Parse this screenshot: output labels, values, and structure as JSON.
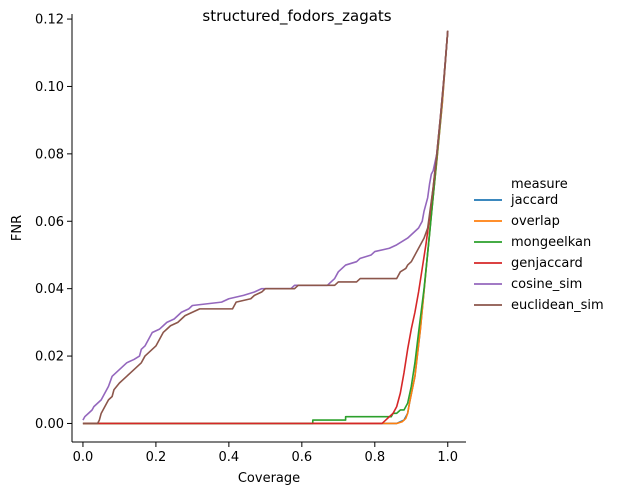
{
  "chart_data": {
    "type": "line",
    "title": "structured_fodors_zagats",
    "xlabel": "Coverage",
    "ylabel": "FNR",
    "xlim": [
      -0.03,
      1.05
    ],
    "ylim": [
      -0.0055,
      0.1215
    ],
    "xticks": [
      0.0,
      0.2,
      0.4,
      0.6,
      0.8,
      1.0
    ],
    "xtick_labels": [
      "0.0",
      "0.2",
      "0.4",
      "0.6",
      "0.8",
      "1.0"
    ],
    "yticks": [
      0.0,
      0.02,
      0.04,
      0.06,
      0.08,
      0.1,
      0.12
    ],
    "ytick_labels": [
      "0.00",
      "0.02",
      "0.04",
      "0.06",
      "0.08",
      "0.10",
      "0.12"
    ],
    "grid": false,
    "legend": {
      "title": "measure",
      "placement": "right-outside"
    },
    "series": [
      {
        "name": "jaccard",
        "color": "#1f77b4",
        "points": [
          [
            0,
            0
          ],
          [
            0.86,
            0
          ],
          [
            0.87,
            0.0005
          ],
          [
            0.88,
            0.001
          ],
          [
            0.89,
            0.003
          ],
          [
            0.895,
            0.006
          ],
          [
            0.91,
            0.014
          ],
          [
            0.925,
            0.028
          ],
          [
            0.94,
            0.045
          ],
          [
            0.955,
            0.062
          ],
          [
            0.97,
            0.078
          ],
          [
            0.985,
            0.095
          ],
          [
            1.0,
            0.1165
          ]
        ]
      },
      {
        "name": "overlap",
        "color": "#ff7f0e",
        "points": [
          [
            0,
            0
          ],
          [
            0.86,
            0
          ],
          [
            0.875,
            0.0005
          ],
          [
            0.885,
            0.0015
          ],
          [
            0.89,
            0.003
          ],
          [
            0.895,
            0.006
          ],
          [
            0.91,
            0.014
          ],
          [
            0.925,
            0.028
          ],
          [
            0.94,
            0.045
          ],
          [
            0.955,
            0.062
          ],
          [
            0.97,
            0.078
          ],
          [
            0.985,
            0.095
          ],
          [
            1.0,
            0.1165
          ]
        ]
      },
      {
        "name": "mongeelkan",
        "color": "#2ca02c",
        "points": [
          [
            0,
            0
          ],
          [
            0.63,
            0
          ],
          [
            0.63,
            0.001
          ],
          [
            0.72,
            0.001
          ],
          [
            0.72,
            0.002
          ],
          [
            0.84,
            0.002
          ],
          [
            0.845,
            0.002
          ],
          [
            0.85,
            0.003
          ],
          [
            0.86,
            0.003
          ],
          [
            0.87,
            0.004
          ],
          [
            0.88,
            0.004
          ],
          [
            0.89,
            0.006
          ],
          [
            0.9,
            0.011
          ],
          [
            0.91,
            0.018
          ],
          [
            0.92,
            0.027
          ],
          [
            0.935,
            0.04
          ],
          [
            0.95,
            0.056
          ],
          [
            0.965,
            0.073
          ],
          [
            0.98,
            0.09
          ],
          [
            0.99,
            0.103
          ],
          [
            1.0,
            0.1165
          ]
        ]
      },
      {
        "name": "genjaccard",
        "color": "#d62728",
        "points": [
          [
            0,
            0
          ],
          [
            0.82,
            0
          ],
          [
            0.83,
            0.001
          ],
          [
            0.84,
            0.002
          ],
          [
            0.85,
            0.003
          ],
          [
            0.86,
            0.005
          ],
          [
            0.87,
            0.009
          ],
          [
            0.88,
            0.015
          ],
          [
            0.89,
            0.022
          ],
          [
            0.9,
            0.028
          ],
          [
            0.91,
            0.033
          ],
          [
            0.92,
            0.039
          ],
          [
            0.93,
            0.046
          ],
          [
            0.94,
            0.053
          ],
          [
            0.95,
            0.061
          ],
          [
            0.96,
            0.07
          ],
          [
            0.97,
            0.08
          ],
          [
            0.98,
            0.091
          ],
          [
            0.99,
            0.103
          ],
          [
            1.0,
            0.1165
          ]
        ]
      },
      {
        "name": "cosine_sim",
        "color": "#9467bd",
        "points": [
          [
            0,
            0.001
          ],
          [
            0.005,
            0.002
          ],
          [
            0.015,
            0.003
          ],
          [
            0.025,
            0.004
          ],
          [
            0.03,
            0.005
          ],
          [
            0.04,
            0.006
          ],
          [
            0.05,
            0.007
          ],
          [
            0.06,
            0.009
          ],
          [
            0.07,
            0.011
          ],
          [
            0.08,
            0.014
          ],
          [
            0.09,
            0.015
          ],
          [
            0.1,
            0.016
          ],
          [
            0.11,
            0.017
          ],
          [
            0.12,
            0.018
          ],
          [
            0.14,
            0.019
          ],
          [
            0.155,
            0.02
          ],
          [
            0.16,
            0.022
          ],
          [
            0.17,
            0.023
          ],
          [
            0.18,
            0.025
          ],
          [
            0.19,
            0.027
          ],
          [
            0.21,
            0.028
          ],
          [
            0.22,
            0.029
          ],
          [
            0.23,
            0.03
          ],
          [
            0.25,
            0.031
          ],
          [
            0.26,
            0.032
          ],
          [
            0.27,
            0.033
          ],
          [
            0.29,
            0.034
          ],
          [
            0.3,
            0.035
          ],
          [
            0.38,
            0.036
          ],
          [
            0.4,
            0.037
          ],
          [
            0.44,
            0.038
          ],
          [
            0.47,
            0.039
          ],
          [
            0.49,
            0.04
          ],
          [
            0.57,
            0.04
          ],
          [
            0.58,
            0.041
          ],
          [
            0.67,
            0.041
          ],
          [
            0.68,
            0.042
          ],
          [
            0.69,
            0.043
          ],
          [
            0.7,
            0.045
          ],
          [
            0.71,
            0.046
          ],
          [
            0.72,
            0.047
          ],
          [
            0.75,
            0.048
          ],
          [
            0.76,
            0.049
          ],
          [
            0.79,
            0.05
          ],
          [
            0.8,
            0.051
          ],
          [
            0.84,
            0.052
          ],
          [
            0.86,
            0.053
          ],
          [
            0.875,
            0.054
          ],
          [
            0.89,
            0.055
          ],
          [
            0.9,
            0.056
          ],
          [
            0.91,
            0.057
          ],
          [
            0.92,
            0.058
          ],
          [
            0.93,
            0.06
          ],
          [
            0.935,
            0.063
          ],
          [
            0.945,
            0.067
          ],
          [
            0.95,
            0.071
          ],
          [
            0.955,
            0.074
          ],
          [
            0.96,
            0.075
          ],
          [
            0.97,
            0.08
          ],
          [
            0.98,
            0.091
          ],
          [
            0.99,
            0.103
          ],
          [
            1.0,
            0.1165
          ]
        ]
      },
      {
        "name": "euclidean_sim",
        "color": "#8c564b",
        "points": [
          [
            0,
            0
          ],
          [
            0.04,
            0
          ],
          [
            0.045,
            0.001
          ],
          [
            0.05,
            0.003
          ],
          [
            0.06,
            0.005
          ],
          [
            0.07,
            0.007
          ],
          [
            0.08,
            0.008
          ],
          [
            0.085,
            0.01
          ],
          [
            0.1,
            0.012
          ],
          [
            0.12,
            0.014
          ],
          [
            0.13,
            0.015
          ],
          [
            0.14,
            0.016
          ],
          [
            0.15,
            0.017
          ],
          [
            0.16,
            0.018
          ],
          [
            0.17,
            0.02
          ],
          [
            0.18,
            0.021
          ],
          [
            0.19,
            0.022
          ],
          [
            0.2,
            0.023
          ],
          [
            0.21,
            0.025
          ],
          [
            0.22,
            0.027
          ],
          [
            0.23,
            0.028
          ],
          [
            0.24,
            0.029
          ],
          [
            0.26,
            0.03
          ],
          [
            0.27,
            0.031
          ],
          [
            0.28,
            0.032
          ],
          [
            0.3,
            0.033
          ],
          [
            0.32,
            0.034
          ],
          [
            0.41,
            0.034
          ],
          [
            0.42,
            0.036
          ],
          [
            0.46,
            0.037
          ],
          [
            0.47,
            0.038
          ],
          [
            0.49,
            0.039
          ],
          [
            0.5,
            0.04
          ],
          [
            0.58,
            0.04
          ],
          [
            0.59,
            0.041
          ],
          [
            0.69,
            0.041
          ],
          [
            0.7,
            0.042
          ],
          [
            0.75,
            0.042
          ],
          [
            0.76,
            0.043
          ],
          [
            0.86,
            0.043
          ],
          [
            0.87,
            0.045
          ],
          [
            0.885,
            0.046
          ],
          [
            0.89,
            0.047
          ],
          [
            0.9,
            0.048
          ],
          [
            0.91,
            0.05
          ],
          [
            0.92,
            0.052
          ],
          [
            0.93,
            0.054
          ],
          [
            0.935,
            0.055
          ],
          [
            0.945,
            0.058
          ],
          [
            0.95,
            0.062
          ],
          [
            0.96,
            0.07
          ],
          [
            0.97,
            0.08
          ],
          [
            0.98,
            0.091
          ],
          [
            0.99,
            0.103
          ],
          [
            1.0,
            0.1165
          ]
        ]
      }
    ]
  }
}
